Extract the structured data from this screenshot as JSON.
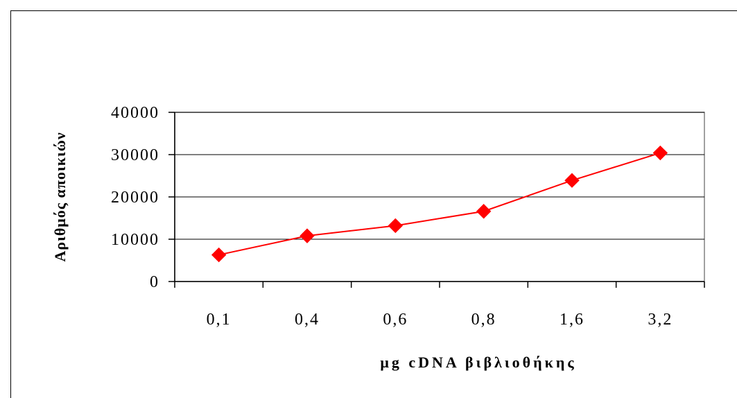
{
  "chart_data": {
    "type": "line",
    "title": "",
    "xlabel": "μg cDNA βιβλιοθήκης",
    "ylabel": "Αριθμός αποικιών",
    "categories": [
      "0,1",
      "0,4",
      "0,6",
      "0,8",
      "1,6",
      "3,2"
    ],
    "series": [
      {
        "values": [
          6300,
          10800,
          13200,
          16600,
          23900,
          30400
        ]
      }
    ],
    "ylim": [
      0,
      40000
    ],
    "yticks": [
      0,
      10000,
      20000,
      30000,
      40000
    ],
    "ytick_labels": [
      "0",
      "10000",
      "20000",
      "30000",
      "40000"
    ],
    "grid": true,
    "legend": "none",
    "line_color": "#ff0000",
    "marker": "diamond"
  }
}
